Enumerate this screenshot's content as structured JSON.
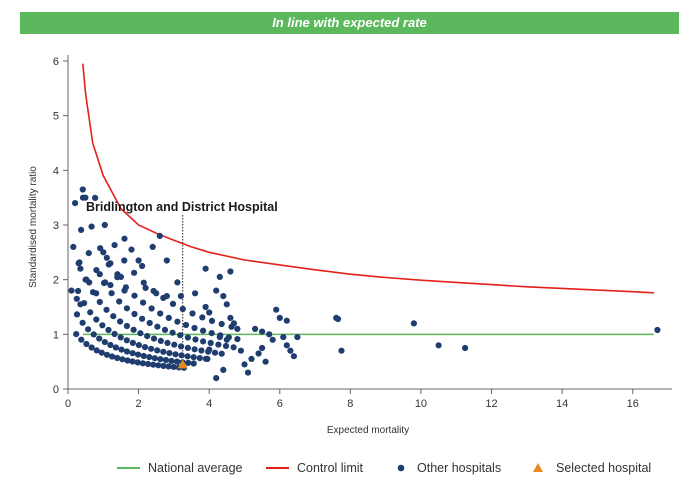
{
  "banner": {
    "text": "In line with expected rate"
  },
  "colors": {
    "national": "#5cb85c",
    "control": "#e32119",
    "other": "#1f3d6e",
    "selected": "#e8891e",
    "banner": "#5cb85c"
  },
  "chart_data": {
    "type": "scatter",
    "xlabel": "Expected mortality",
    "ylabel": "Standardised mortality ratio",
    "xlim": [
      0,
      17
    ],
    "ylim": [
      0,
      6
    ],
    "x_ticks": [
      0,
      2,
      4,
      6,
      8,
      10,
      12,
      14,
      16
    ],
    "y_ticks": [
      0,
      1,
      2,
      3,
      4,
      5,
      6
    ],
    "national_average": 1,
    "control_limit": [
      [
        0.42,
        5.95
      ],
      [
        0.5,
        5.4
      ],
      [
        0.7,
        4.5
      ],
      [
        1.0,
        3.9
      ],
      [
        1.5,
        3.3
      ],
      [
        2.0,
        3.0
      ],
      [
        2.5,
        2.85
      ],
      [
        3.0,
        2.72
      ],
      [
        3.5,
        2.6
      ],
      [
        4.0,
        2.5
      ],
      [
        5.0,
        2.36
      ],
      [
        6.0,
        2.27
      ],
      [
        7.0,
        2.18
      ],
      [
        8.0,
        2.1
      ],
      [
        9.0,
        2.04
      ],
      [
        10.0,
        1.99
      ],
      [
        11.0,
        1.95
      ],
      [
        12.0,
        1.91
      ],
      [
        13.0,
        1.87
      ],
      [
        14.0,
        1.84
      ],
      [
        15.0,
        1.81
      ],
      [
        16.0,
        1.78
      ],
      [
        16.6,
        1.76
      ]
    ],
    "annotation": {
      "text": "Bridlington and District Hospital",
      "x": 3.25,
      "y": 0.45
    },
    "selected_hospital": [
      [
        3.25,
        0.45
      ]
    ],
    "other_hospitals": [
      [
        0.1,
        1.8
      ],
      [
        0.15,
        2.6
      ],
      [
        0.2,
        3.4
      ],
      [
        0.3,
        2.3
      ],
      [
        0.35,
        2.2
      ],
      [
        0.42,
        3.65
      ],
      [
        0.25,
        1.65
      ],
      [
        0.35,
        1.55
      ],
      [
        0.5,
        2.0
      ],
      [
        0.6,
        1.95
      ],
      [
        0.8,
        1.75
      ],
      [
        0.9,
        2.1
      ],
      [
        1.0,
        2.5
      ],
      [
        1.1,
        2.4
      ],
      [
        1.2,
        2.3
      ],
      [
        1.4,
        2.1
      ],
      [
        1.5,
        2.05
      ],
      [
        1.6,
        2.75
      ],
      [
        1.8,
        2.55
      ],
      [
        2.0,
        2.35
      ],
      [
        2.1,
        2.25
      ],
      [
        2.4,
        2.6
      ],
      [
        2.6,
        2.8
      ],
      [
        2.8,
        2.35
      ],
      [
        1.05,
        1.95
      ],
      [
        1.2,
        1.9
      ],
      [
        1.6,
        1.8
      ],
      [
        2.2,
        1.85
      ],
      [
        2.5,
        1.75
      ],
      [
        2.8,
        1.7
      ],
      [
        3.1,
        1.95
      ],
      [
        3.2,
        1.7
      ],
      [
        3.6,
        1.75
      ],
      [
        3.9,
        1.5
      ],
      [
        4.0,
        1.4
      ],
      [
        4.2,
        1.8
      ],
      [
        4.4,
        1.7
      ],
      [
        4.5,
        1.55
      ],
      [
        4.6,
        1.3
      ],
      [
        4.7,
        1.2
      ],
      [
        4.8,
        1.1
      ],
      [
        3.9,
        2.2
      ],
      [
        4.3,
        2.05
      ],
      [
        4.6,
        2.15
      ],
      [
        4.9,
        0.7
      ],
      [
        5.3,
        1.1
      ],
      [
        5.5,
        1.05
      ],
      [
        5.7,
        1.0
      ],
      [
        5.8,
        0.9
      ],
      [
        5.5,
        0.75
      ],
      [
        5.4,
        0.65
      ],
      [
        5.2,
        0.55
      ],
      [
        5.0,
        0.45
      ],
      [
        5.6,
        0.5
      ],
      [
        5.9,
        1.45
      ],
      [
        6.0,
        1.3
      ],
      [
        6.2,
        1.25
      ],
      [
        6.1,
        0.95
      ],
      [
        6.2,
        0.8
      ],
      [
        6.3,
        0.7
      ],
      [
        6.4,
        0.6
      ],
      [
        6.5,
        0.95
      ],
      [
        7.6,
        1.3
      ],
      [
        7.65,
        1.28
      ],
      [
        7.75,
        0.7
      ],
      [
        9.8,
        1.2
      ],
      [
        10.5,
        0.8
      ],
      [
        11.25,
        0.75
      ],
      [
        16.7,
        1.08
      ],
      [
        4.2,
        0.2
      ],
      [
        3.95,
        0.55
      ],
      [
        4.4,
        0.35
      ],
      [
        5.1,
        0.3
      ],
      [
        4.0,
        0.72
      ],
      [
        4.3,
        0.95
      ],
      [
        4.5,
        0.9
      ]
    ]
  },
  "legend": {
    "national": "National average",
    "control": "Control limit",
    "other": "Other hospitals",
    "selected": "Selected hospital"
  }
}
